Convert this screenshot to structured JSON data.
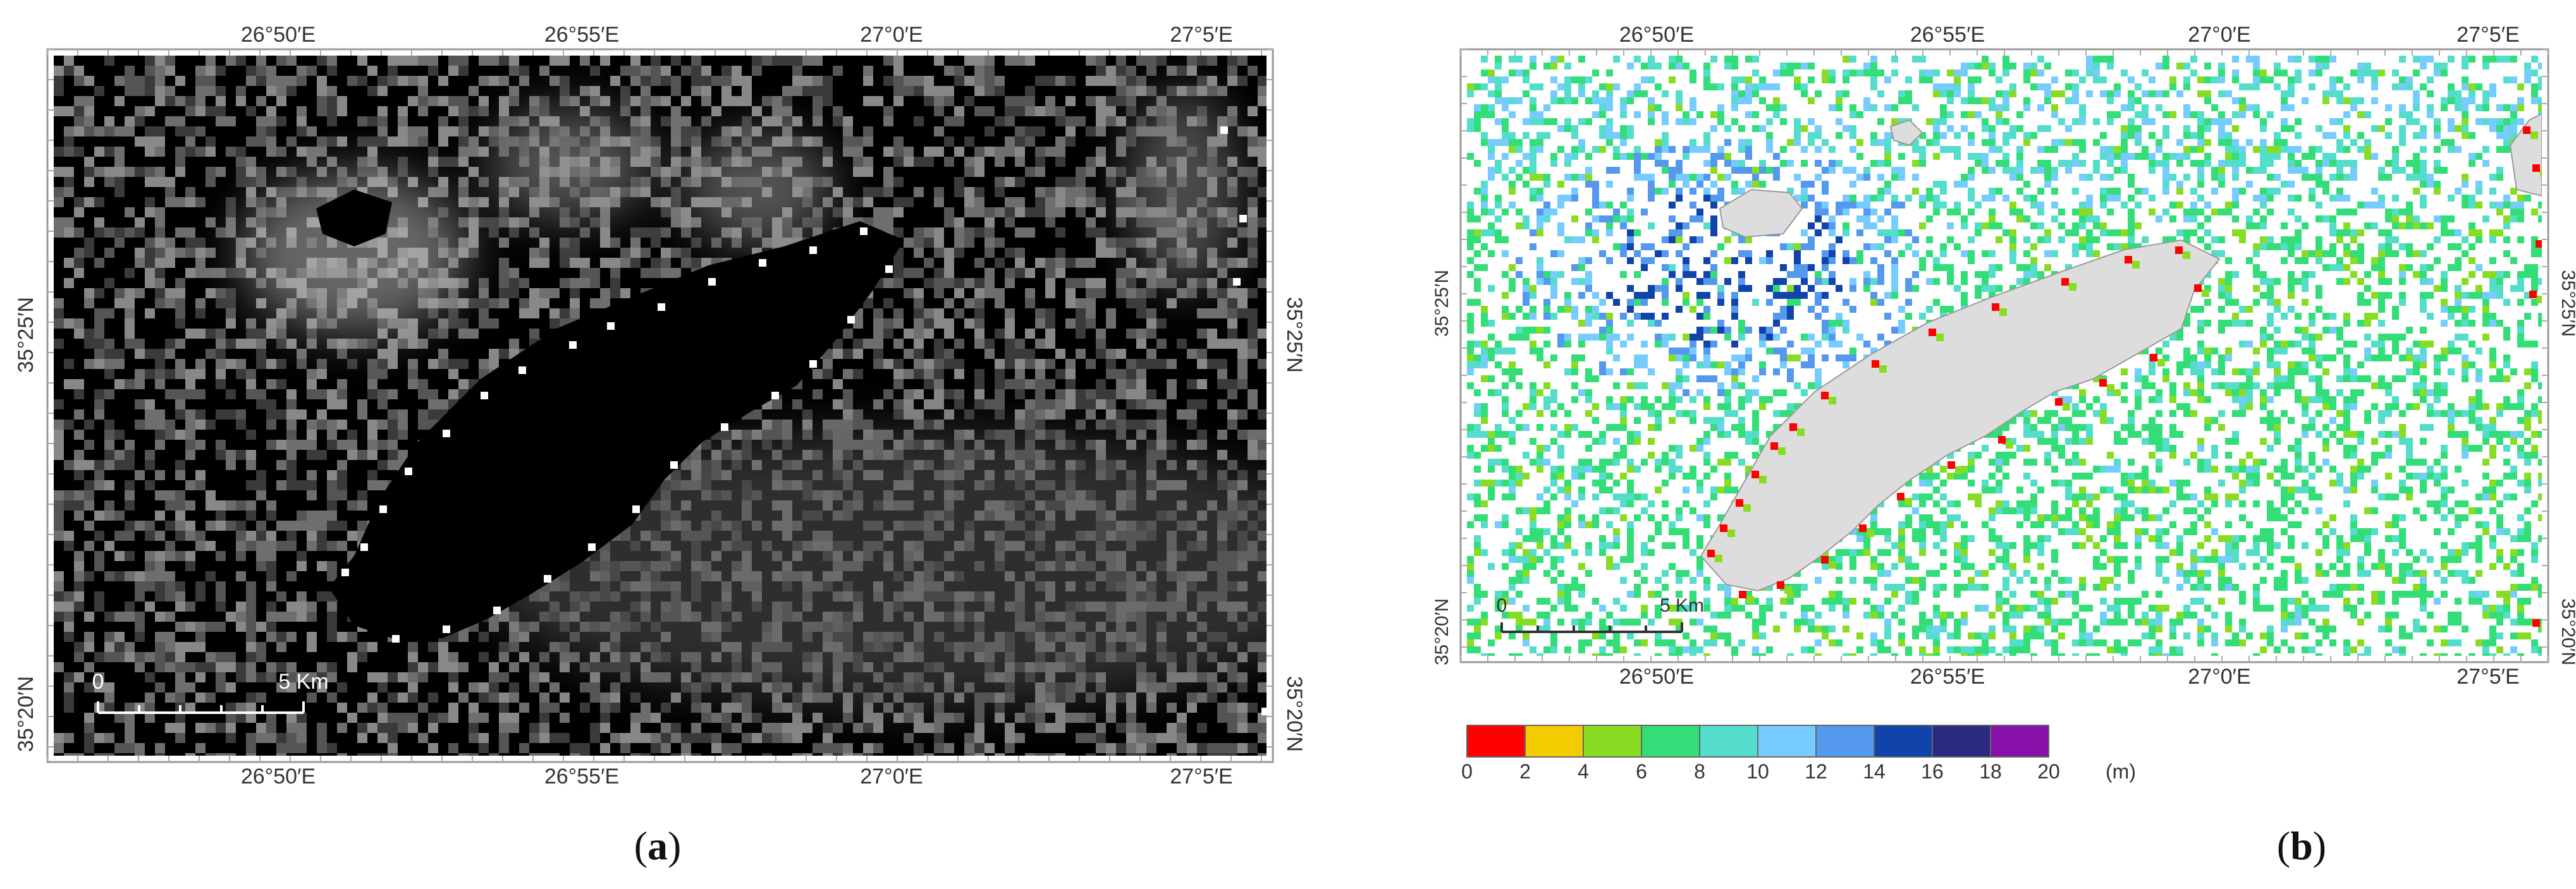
{
  "panel_a": {
    "caption": "(a)",
    "caption_letter": "a",
    "lon_labels": [
      "26°50′E",
      "26°55′E",
      "27°0′E",
      "27°5′E"
    ],
    "lat_labels": [
      "35°25′N",
      "35°20′N"
    ],
    "scale_bar": {
      "start_label": "0",
      "end_label": "5 Km"
    }
  },
  "panel_b": {
    "caption": "(b)",
    "caption_letter": "b",
    "lon_labels": [
      "26°50′E",
      "26°55′E",
      "27°0′E",
      "27°5′E"
    ],
    "lat_labels": [
      "35°25′N",
      "35°20′N"
    ],
    "scale_bar": {
      "start_label": "0",
      "end_label": "5 Km"
    }
  },
  "legend": {
    "unit": "(m)",
    "tick_labels": [
      "0",
      "2",
      "4",
      "6",
      "8",
      "10",
      "12",
      "14",
      "16",
      "18",
      "20"
    ],
    "colors": [
      "#ff0000",
      "#f2cc00",
      "#88dd22",
      "#33dd77",
      "#55ddcc",
      "#77ccff",
      "#5599ee",
      "#1144aa",
      "#2a2a80",
      "#8811aa"
    ]
  },
  "colors": {
    "land": "#dddddd",
    "frame": "#888888",
    "panel_a_background": "#000000"
  }
}
